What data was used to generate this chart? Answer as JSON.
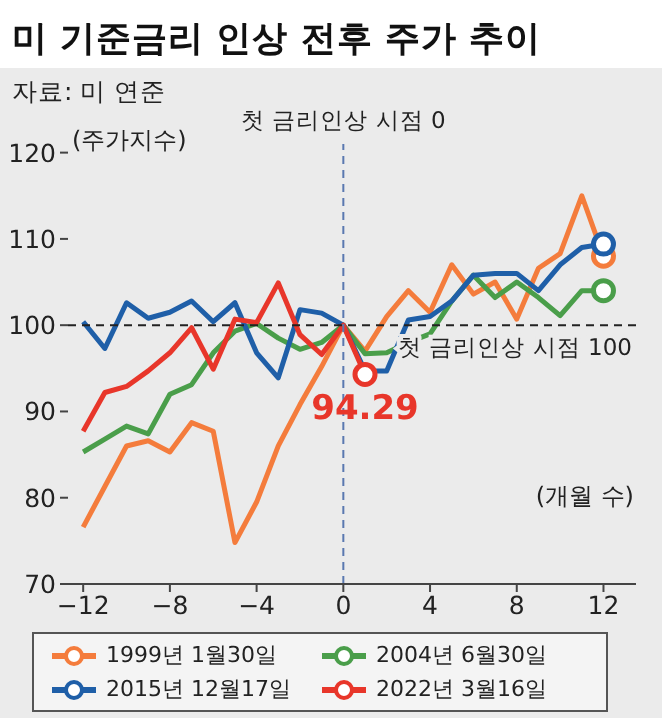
{
  "chart_data": {
    "type": "line",
    "title": "미 기준금리 인상 전후 주가 추이",
    "subtitle": "자료: 미 연준",
    "xlabel": "(개월 수)",
    "ylabel": "(주가지수)",
    "x": [
      -12,
      -11,
      -10,
      -9,
      -8,
      -7,
      -6,
      -5,
      -4,
      -3,
      -2,
      -1,
      0,
      1,
      2,
      3,
      4,
      5,
      6,
      7,
      8,
      9,
      10,
      11,
      12
    ],
    "series": [
      {
        "name": "1999년 1월30일",
        "color": "#f47c3c",
        "values": [
          76.6,
          81.3,
          86,
          86.6,
          85.3,
          88.7,
          87.7,
          74.8,
          79.5,
          86,
          90.8,
          95.2,
          100,
          97,
          101,
          104,
          101.5,
          107,
          103.6,
          105,
          100.7,
          106.6,
          108.3,
          115,
          108
        ]
      },
      {
        "name": "2004년 6월30일",
        "color": "#4a9e4a",
        "values": [
          85.3,
          86.8,
          88.3,
          87.4,
          92,
          93.1,
          96.8,
          99.3,
          100.2,
          98.5,
          97.2,
          98,
          100,
          96.7,
          96.8,
          98,
          99,
          102.8,
          105.8,
          103.2,
          105,
          103.2,
          101.1,
          104,
          104
        ]
      },
      {
        "name": "2015년 12월17일",
        "color": "#1f5fa8",
        "values": [
          100.4,
          97.3,
          102.6,
          100.8,
          101.5,
          102.8,
          100.4,
          102.6,
          96.8,
          93.9,
          101.8,
          101.4,
          100,
          94.7,
          94.7,
          100.6,
          101,
          102.8,
          105.8,
          106,
          106,
          104,
          107,
          109,
          109.4
        ]
      },
      {
        "name": "2022년 3월16일",
        "color": "#e8362a",
        "values": [
          87.7,
          92.2,
          92.9,
          94.7,
          96.8,
          99.7,
          94.9,
          100.7,
          100.3,
          104.9,
          98.9,
          96.6,
          100,
          94.29,
          null,
          null,
          null,
          null,
          null,
          null,
          null,
          null,
          null,
          null,
          null
        ]
      }
    ],
    "xlim": [
      -12.7,
      13.5
    ],
    "xticks": [
      -12,
      -8,
      -4,
      0,
      4,
      8,
      12
    ],
    "ylim": [
      70,
      121
    ],
    "yticks": [
      70,
      80,
      90,
      100,
      110,
      120
    ],
    "ref_lines": [
      {
        "axis": "x",
        "value": 0,
        "label": "첫 금리인상 시점 0",
        "color": "#5a78b0",
        "line_style": "dashed"
      },
      {
        "axis": "y",
        "value": 100,
        "label": "첫 금리인상 시점 100",
        "color": "#222222",
        "line_style": "dashed"
      }
    ],
    "annotations": [
      {
        "text": "94.29",
        "x": 1,
        "y": 94.29
      }
    ],
    "legend": "bottom",
    "line_style": "solid"
  }
}
